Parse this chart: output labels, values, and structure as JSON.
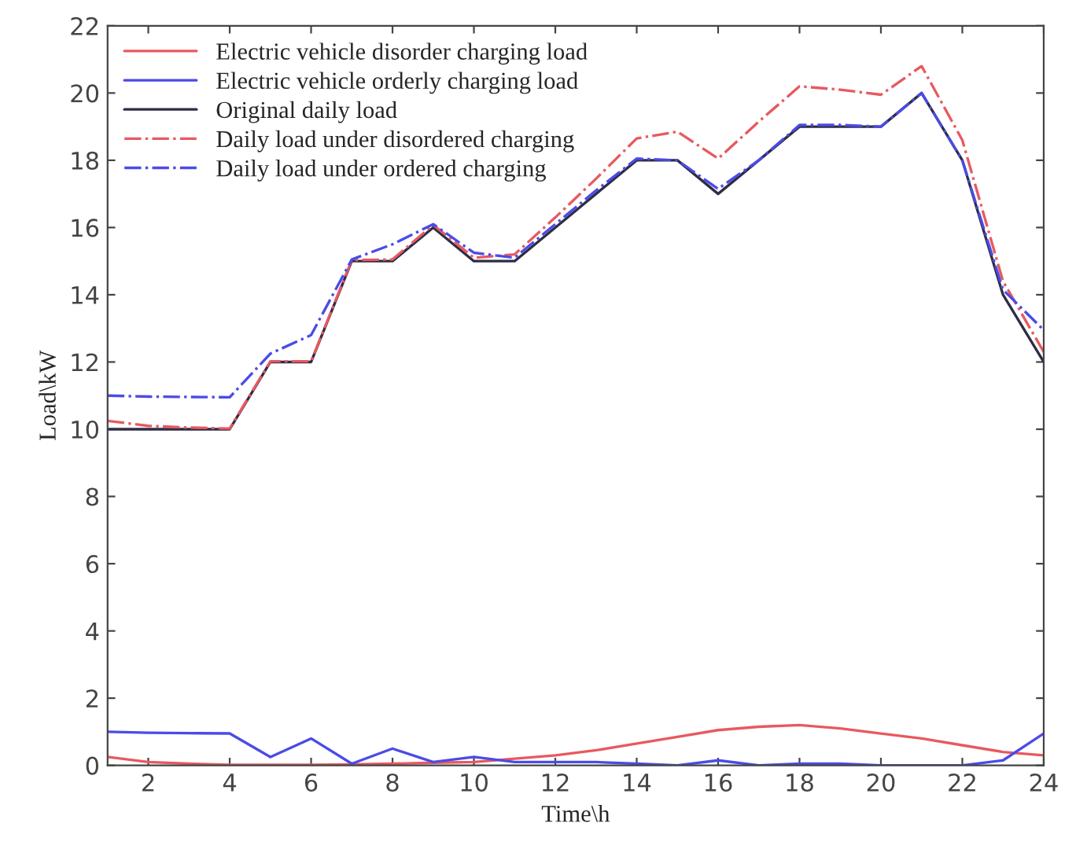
{
  "chart_data": {
    "type": "line",
    "xlabel": "Time\\h",
    "ylabel": "Load\\kW",
    "x": [
      1,
      2,
      3,
      4,
      5,
      6,
      7,
      8,
      9,
      10,
      11,
      12,
      13,
      14,
      15,
      16,
      17,
      18,
      19,
      20,
      21,
      22,
      23,
      24
    ],
    "series": [
      {
        "name": "Electric vehicle disorder charging load",
        "color": "#e8595f",
        "line_style": "solid",
        "values": [
          0.25,
          0.1,
          0.05,
          0.02,
          0.02,
          0.02,
          0.03,
          0.05,
          0.08,
          0.1,
          0.2,
          0.3,
          0.45,
          0.65,
          0.85,
          1.05,
          1.15,
          1.2,
          1.1,
          0.95,
          0.8,
          0.6,
          0.4,
          0.3
        ]
      },
      {
        "name": "Electric vehicle orderly charging load",
        "color": "#4b4be8",
        "line_style": "solid",
        "values": [
          1.0,
          0.97,
          0.96,
          0.95,
          0.25,
          0.8,
          0.05,
          0.5,
          0.1,
          0.25,
          0.1,
          0.1,
          0.1,
          0.05,
          0.0,
          0.15,
          0.0,
          0.05,
          0.05,
          0.0,
          0.0,
          0.0,
          0.15,
          0.95
        ]
      },
      {
        "name": "Original daily load",
        "color": "#2d2d45",
        "line_style": "solid",
        "values": [
          10,
          10,
          10,
          10,
          12,
          12,
          15,
          15,
          16,
          15,
          15,
          16,
          17,
          18,
          18,
          17,
          18,
          19,
          19,
          19,
          20,
          18,
          14,
          12
        ]
      },
      {
        "name": "Daily load under disordered charging",
        "color": "#e8595f",
        "line_style": "dashdot",
        "values": [
          10.25,
          10.1,
          10.05,
          10.02,
          12.02,
          12.02,
          15.03,
          15.05,
          16.08,
          15.1,
          15.2,
          16.3,
          17.45,
          18.65,
          18.85,
          18.05,
          19.15,
          20.2,
          20.1,
          19.95,
          20.8,
          18.6,
          14.4,
          12.3
        ]
      },
      {
        "name": "Daily load under ordered charging",
        "color": "#4b4be8",
        "line_style": "dashdot",
        "values": [
          11.0,
          10.97,
          10.96,
          10.95,
          12.25,
          12.8,
          15.05,
          15.5,
          16.1,
          15.25,
          15.1,
          16.1,
          17.1,
          18.05,
          18.0,
          17.15,
          18.0,
          19.05,
          19.05,
          19.0,
          20.0,
          18.0,
          14.15,
          12.95
        ]
      }
    ],
    "xlim": [
      1,
      24
    ],
    "xticks": [
      2,
      4,
      6,
      8,
      10,
      12,
      14,
      16,
      18,
      20,
      22,
      24
    ],
    "ylim": [
      0,
      22
    ],
    "yticks": [
      0,
      2,
      4,
      6,
      8,
      10,
      12,
      14,
      16,
      18,
      20,
      22
    ],
    "grid": false,
    "legend": "top left"
  }
}
